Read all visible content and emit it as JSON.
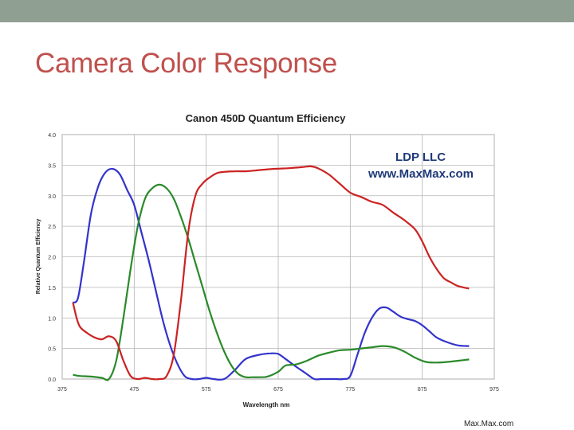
{
  "slide": {
    "title": "Camera Color Response",
    "credit": "Max.Max.com"
  },
  "chart_data": {
    "type": "line",
    "title": "Canon 450D Quantum Efficiency",
    "xlabel": "Wavelength nm",
    "ylabel": "Relative Quantum Efficiency",
    "xlim": [
      375,
      975
    ],
    "ylim": [
      0,
      4.0
    ],
    "xticks": [
      375,
      475,
      575,
      675,
      775,
      875,
      975
    ],
    "yticks": [
      0.0,
      0.5,
      1.0,
      1.5,
      2.0,
      2.5,
      3.0,
      3.5,
      4.0
    ],
    "ytick_labels": [
      "0.0",
      "0.5",
      "1.0",
      "1.5",
      "2.0",
      "2.5",
      "3.0",
      "3.5",
      "4.0"
    ],
    "grid": true,
    "annotations": [
      "LDP LLC",
      "www.MaxMax.com"
    ],
    "series": [
      {
        "color": "#3333cc",
        "x": [
          390,
          397,
          405,
          415,
          425,
          435,
          445,
          455,
          465,
          475,
          485,
          495,
          505,
          515,
          525,
          535,
          545,
          555,
          565,
          575,
          585,
          600,
          615,
          630,
          650,
          665,
          675,
          685,
          700,
          715,
          725,
          735,
          745,
          755,
          765,
          775,
          785,
          795,
          805,
          815,
          825,
          835,
          845,
          855,
          865,
          875,
          885,
          895,
          910,
          925,
          940
        ],
        "y": [
          1.25,
          1.33,
          1.9,
          2.7,
          3.15,
          3.38,
          3.44,
          3.35,
          3.1,
          2.85,
          2.4,
          1.95,
          1.45,
          0.95,
          0.55,
          0.25,
          0.05,
          0.0,
          0.0,
          0.02,
          0.0,
          0.0,
          0.15,
          0.33,
          0.4,
          0.42,
          0.41,
          0.33,
          0.2,
          0.08,
          0.0,
          0.0,
          0.0,
          0.0,
          0.0,
          0.05,
          0.4,
          0.75,
          1.0,
          1.15,
          1.17,
          1.1,
          1.02,
          0.98,
          0.95,
          0.88,
          0.78,
          0.68,
          0.6,
          0.55,
          0.54
        ]
      },
      {
        "color": "#2a8a2a",
        "x": [
          390,
          400,
          415,
          430,
          440,
          450,
          460,
          470,
          480,
          490,
          500,
          510,
          520,
          530,
          540,
          550,
          560,
          570,
          580,
          590,
          600,
          610,
          620,
          630,
          640,
          650,
          660,
          675,
          685,
          700,
          715,
          730,
          745,
          760,
          775,
          790,
          805,
          820,
          835,
          850,
          865,
          880,
          895,
          910,
          925,
          940
        ],
        "y": [
          0.07,
          0.05,
          0.04,
          0.02,
          0.0,
          0.3,
          1.0,
          1.8,
          2.5,
          2.95,
          3.12,
          3.18,
          3.12,
          2.95,
          2.65,
          2.3,
          1.9,
          1.5,
          1.1,
          0.75,
          0.45,
          0.22,
          0.08,
          0.03,
          0.03,
          0.03,
          0.04,
          0.12,
          0.22,
          0.24,
          0.3,
          0.38,
          0.43,
          0.47,
          0.48,
          0.5,
          0.52,
          0.54,
          0.52,
          0.45,
          0.35,
          0.28,
          0.27,
          0.28,
          0.3,
          0.32
        ]
      },
      {
        "color": "#cc2222",
        "x": [
          390,
          395,
          400,
          410,
          420,
          430,
          440,
          450,
          460,
          470,
          480,
          490,
          500,
          510,
          520,
          530,
          540,
          550,
          560,
          570,
          580,
          590,
          600,
          615,
          630,
          650,
          670,
          690,
          710,
          720,
          730,
          745,
          760,
          775,
          790,
          805,
          820,
          835,
          850,
          865,
          875,
          885,
          895,
          905,
          915,
          925,
          940
        ],
        "y": [
          1.25,
          1.0,
          0.85,
          0.75,
          0.68,
          0.65,
          0.7,
          0.62,
          0.3,
          0.05,
          0.0,
          0.02,
          0.0,
          0.0,
          0.05,
          0.4,
          1.3,
          2.4,
          3.0,
          3.2,
          3.3,
          3.37,
          3.39,
          3.4,
          3.4,
          3.42,
          3.44,
          3.45,
          3.47,
          3.48,
          3.45,
          3.35,
          3.2,
          3.05,
          2.98,
          2.9,
          2.85,
          2.72,
          2.6,
          2.45,
          2.25,
          2.0,
          1.8,
          1.65,
          1.58,
          1.52,
          1.48
        ]
      }
    ]
  }
}
